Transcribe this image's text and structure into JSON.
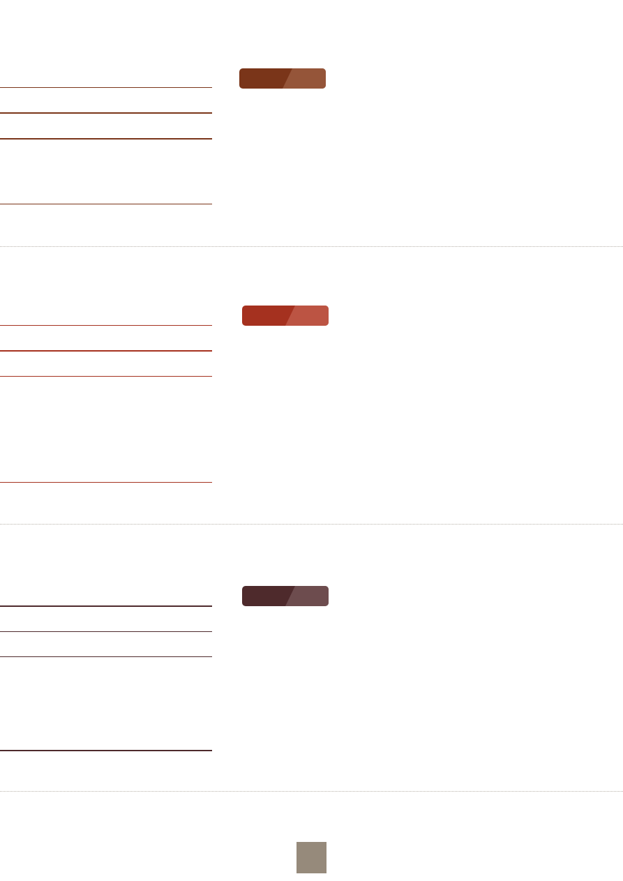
{
  "sections": [
    {
      "id": "section-1",
      "accent": "#7a3519",
      "accent_light": "#9a5a40"
    },
    {
      "id": "section-2",
      "accent": "#a5311f",
      "accent_light": "#bf5a4a"
    },
    {
      "id": "section-3",
      "accent": "#4e2a2c",
      "accent_light": "#735255"
    }
  ],
  "page_marker_color": "#968a7b",
  "separator_color": "#b8b2aa"
}
